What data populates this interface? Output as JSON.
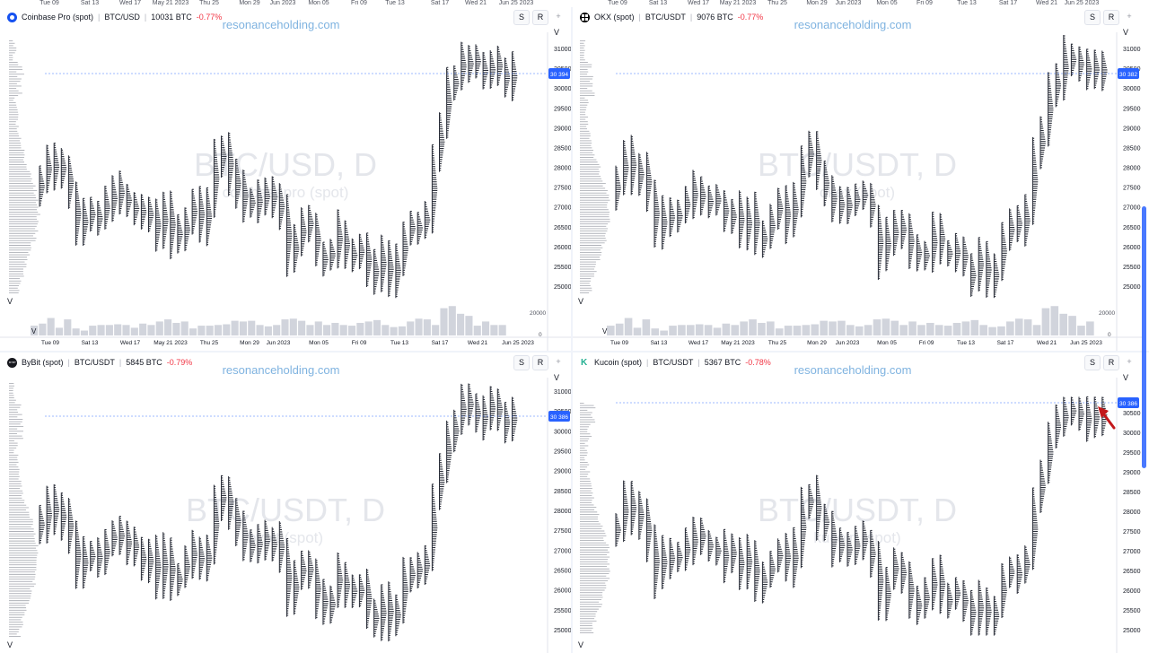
{
  "top_axis": {
    "labels": [
      "Tue 09",
      "Sat 13",
      "Wed 17",
      "May 21 2023",
      "Thu 25",
      "Mon 29",
      "Jun 2023",
      "Mon 05",
      "Fri 09",
      "Tue 13",
      "Sat 17",
      "Wed 21",
      "Jun 25 2023"
    ]
  },
  "watermark_site": "resonanceholding.com",
  "colors": {
    "candle": "#2a2e39",
    "volume": "#d1d4dc",
    "price_tag": "#2962ff",
    "change_negative": "#f23645",
    "watermark_site": "#7fb3e0",
    "watermark_big": "#e4e6eb",
    "arrow": "#c2181b"
  },
  "chart_data": [
    {
      "type": "candlestick-volume-profile",
      "exchange_label": "Coinbase Pro (spot)",
      "pair": "BTC/USD",
      "volume_label": "10031 BTC",
      "change": "-0.77%",
      "icon": "coinbase-logo-icon",
      "watermark_symbol": "BTC/USD, D",
      "watermark_sub": "coinbasepro (spot)",
      "last_price_label": "30 394",
      "last_price": 30394,
      "y_ticks": [
        "31000",
        "30500",
        "30000",
        "29500",
        "29000",
        "28500",
        "28000",
        "27500",
        "27000",
        "26500",
        "26000",
        "25500",
        "25000"
      ],
      "ylim": [
        24650,
        31450
      ],
      "volume_tick": "20000",
      "volume_zero": "0",
      "x_labels": [
        "Tue 09",
        "Sat 13",
        "Wed 17",
        "May 21 2023",
        "Thu 25",
        "Mon 29",
        "Jun 2023",
        "Mon 05",
        "Fri 09",
        "Tue 13",
        "Sat 17",
        "Wed 21",
        "Jun 25 2023"
      ],
      "marker_v": "V",
      "buttons": [
        "S",
        "R",
        "+"
      ]
    },
    {
      "type": "candlestick-volume-profile",
      "exchange_label": "OKX (spot)",
      "pair": "BTC/USDT",
      "volume_label": "9076 BTC",
      "change": "-0.77%",
      "icon": "okx-logo-icon",
      "watermark_symbol": "BTC/USDT, D",
      "watermark_sub": "okex (spot)",
      "last_price_label": "30 382",
      "last_price": 30382,
      "y_ticks": [
        "31000",
        "30500",
        "30000",
        "29500",
        "29000",
        "28500",
        "28000",
        "27500",
        "27000",
        "26500",
        "26000",
        "25500",
        "25000"
      ],
      "ylim": [
        24650,
        31450
      ],
      "volume_tick": "20000",
      "volume_zero": "0",
      "x_labels": [
        "Tue 09",
        "Sat 13",
        "Wed 17",
        "May 21 2023",
        "Thu 25",
        "Mon 29",
        "Jun 2023",
        "Mon 05",
        "Fri 09",
        "Tue 13",
        "Sat 17",
        "Wed 21",
        "Jun 25 2023"
      ],
      "marker_v": "V",
      "buttons": [
        "S",
        "R",
        "+"
      ]
    },
    {
      "type": "candlestick-volume-profile",
      "exchange_label": "ByBit (spot)",
      "pair": "BTC/USDT",
      "volume_label": "5845 BTC",
      "change": "-0.79%",
      "icon": "bybit-logo-icon",
      "watermark_symbol": "BTC/USDT, D",
      "watermark_sub": "bybit (spot)",
      "last_price_label": "30 386",
      "last_price": 30386,
      "y_ticks": [
        "31000",
        "30500",
        "30000",
        "29500",
        "29000",
        "28500",
        "28000",
        "27500",
        "27000",
        "26500",
        "26000",
        "25500",
        "25000"
      ],
      "ylim": [
        24650,
        31450
      ],
      "marker_v": "V",
      "buttons": [
        "S",
        "R",
        "+"
      ]
    },
    {
      "type": "candlestick-volume-profile",
      "exchange_label": "Kucoin (spot)",
      "pair": "BTC/USDT",
      "volume_label": "5367 BTC",
      "change": "-0.78%",
      "icon": "kucoin-logo-icon",
      "watermark_symbol": "BTC/USDT, D",
      "watermark_sub": "kucoin (spot)",
      "last_price_label": "30 386",
      "last_price": 30386,
      "y_ticks": [
        "30500",
        "30000",
        "29500",
        "29000",
        "28500",
        "28000",
        "27500",
        "27000",
        "26500",
        "26000",
        "25500",
        "25000"
      ],
      "ylim": [
        24800,
        30950
      ],
      "marker_v": "V",
      "buttons": [
        "S",
        "R",
        "+"
      ],
      "annotation": "red-arrow"
    }
  ],
  "daily_closes": [
    27700,
    28300,
    27750,
    28000,
    27200,
    26300,
    26850,
    26750,
    26900,
    27150,
    27450,
    27250,
    27100,
    27050,
    26700,
    26950,
    26300,
    27000,
    26200,
    26400,
    26700,
    27000,
    26550,
    27100,
    28200,
    28400,
    27800,
    27500,
    27100,
    27000,
    27150,
    27300,
    27200,
    26800,
    25700,
    26300,
    26600,
    26400,
    25800,
    25650,
    25850,
    26400,
    25800,
    25900,
    26000,
    25500,
    25150,
    25800,
    25100,
    25550,
    26350,
    26500,
    26450,
    26800,
    28300,
    29000,
    30000,
    30200,
    30800,
    30600,
    30500,
    30300,
    30600,
    30450,
    30200,
    30400
  ],
  "volumes": [
    0.28,
    0.34,
    0.5,
    0.22,
    0.46,
    0.2,
    0.14,
    0.28,
    0.3,
    0.3,
    0.32,
    0.3,
    0.22,
    0.34,
    0.3,
    0.4,
    0.46,
    0.36,
    0.4,
    0.2,
    0.28,
    0.28,
    0.3,
    0.32,
    0.42,
    0.4,
    0.42,
    0.3,
    0.26,
    0.3,
    0.46,
    0.48,
    0.42,
    0.3,
    0.4,
    0.3,
    0.36,
    0.3,
    0.28,
    0.36,
    0.4,
    0.44,
    0.3,
    0.24,
    0.26,
    0.4,
    0.48,
    0.46,
    0.3,
    0.78,
    0.84,
    0.62,
    0.56,
    0.28,
    0.4,
    0.3,
    0.3
  ]
}
